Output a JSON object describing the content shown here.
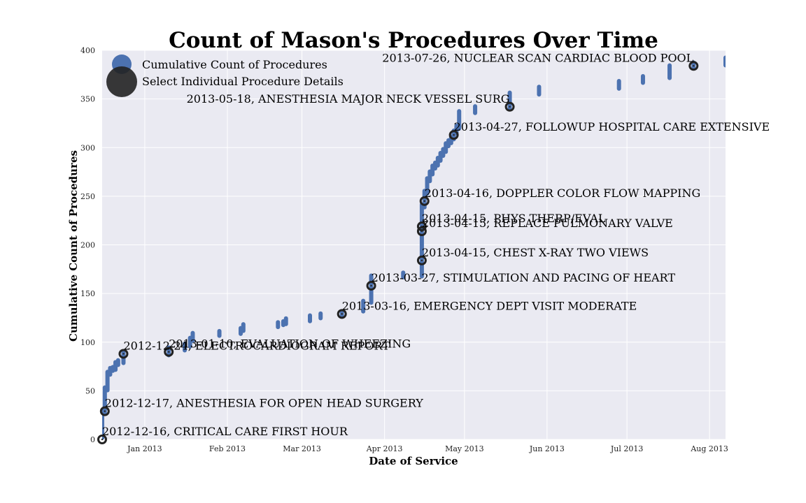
{
  "chart_data": {
    "type": "scatter",
    "title": "Count of Mason's Procedures Over Time",
    "xlabel": "Date of Service",
    "ylabel": "Cumulative Count of Procedures",
    "xlim": [
      "2012-12-16",
      "2013-08-07"
    ],
    "ylim": [
      0,
      400
    ],
    "grid": true,
    "legend_position": "top-left",
    "colors": {
      "background": "#EAEAF2",
      "grid": "#FFFFFF",
      "series": "#4C72B0",
      "selected": "#222222"
    },
    "x_ticks": [
      {
        "date": "2013-01-01",
        "label": "Jan 2013"
      },
      {
        "date": "2013-02-01",
        "label": "Feb 2013"
      },
      {
        "date": "2013-03-01",
        "label": "Mar 2013"
      },
      {
        "date": "2013-04-01",
        "label": "Apr 2013"
      },
      {
        "date": "2013-05-01",
        "label": "May 2013"
      },
      {
        "date": "2013-06-01",
        "label": "Jun 2013"
      },
      {
        "date": "2013-07-01",
        "label": "Jul 2013"
      },
      {
        "date": "2013-08-01",
        "label": "Aug 2013"
      }
    ],
    "y_ticks": [
      {
        "value": 0,
        "label": "0"
      },
      {
        "value": 50,
        "label": "50"
      },
      {
        "value": 100,
        "label": "100"
      },
      {
        "value": 150,
        "label": "150"
      },
      {
        "value": 200,
        "label": "200"
      },
      {
        "value": 250,
        "label": "250"
      },
      {
        "value": 300,
        "label": "300"
      },
      {
        "value": 350,
        "label": "350"
      },
      {
        "value": 400,
        "label": "400"
      }
    ],
    "legend": [
      {
        "label": "Cumulative Count of Procedures"
      },
      {
        "label": "Select Individual Procedure Details"
      }
    ],
    "series": [
      {
        "name": "Cumulative Count of Procedures",
        "segments": [
          {
            "date": "2012-12-16",
            "y_from": 0,
            "y_to": 28
          },
          {
            "date": "2012-12-17",
            "y_from": 28,
            "y_to": 52
          },
          {
            "date": "2012-12-18",
            "y_from": 52,
            "y_to": 68
          },
          {
            "date": "2012-12-19",
            "y_from": 68,
            "y_to": 72
          },
          {
            "date": "2012-12-20",
            "y_from": 72,
            "y_to": 73
          },
          {
            "date": "2012-12-21",
            "y_from": 73,
            "y_to": 78
          },
          {
            "date": "2012-12-22",
            "y_from": 78,
            "y_to": 80
          },
          {
            "date": "2012-12-24",
            "y_from": 80,
            "y_to": 88
          },
          {
            "date": "2013-01-10",
            "y_from": 88,
            "y_to": 93
          },
          {
            "date": "2013-01-16",
            "y_from": 93,
            "y_to": 97
          },
          {
            "date": "2013-01-18",
            "y_from": 97,
            "y_to": 103
          },
          {
            "date": "2013-01-19",
            "y_from": 103,
            "y_to": 108
          },
          {
            "date": "2013-01-29",
            "y_from": 108,
            "y_to": 110
          },
          {
            "date": "2013-02-06",
            "y_from": 110,
            "y_to": 113
          },
          {
            "date": "2013-02-07",
            "y_from": 113,
            "y_to": 117
          },
          {
            "date": "2013-02-20",
            "y_from": 117,
            "y_to": 119
          },
          {
            "date": "2013-02-22",
            "y_from": 119,
            "y_to": 120
          },
          {
            "date": "2013-02-23",
            "y_from": 120,
            "y_to": 123
          },
          {
            "date": "2013-03-04",
            "y_from": 123,
            "y_to": 126
          },
          {
            "date": "2013-03-08",
            "y_from": 126,
            "y_to": 128
          },
          {
            "date": "2013-03-16",
            "y_from": 128,
            "y_to": 130
          },
          {
            "date": "2013-03-24",
            "y_from": 133,
            "y_to": 141
          },
          {
            "date": "2013-03-27",
            "y_from": 142,
            "y_to": 167
          },
          {
            "date": "2013-04-08",
            "y_from": 168,
            "y_to": 170
          },
          {
            "date": "2013-04-15",
            "y_from": 169,
            "y_to": 240
          },
          {
            "date": "2013-04-16",
            "y_from": 240,
            "y_to": 254
          },
          {
            "date": "2013-04-17",
            "y_from": 254,
            "y_to": 267
          },
          {
            "date": "2013-04-18",
            "y_from": 267,
            "y_to": 274
          },
          {
            "date": "2013-04-19",
            "y_from": 274,
            "y_to": 280
          },
          {
            "date": "2013-04-20",
            "y_from": 280,
            "y_to": 283
          },
          {
            "date": "2013-04-21",
            "y_from": 283,
            "y_to": 288
          },
          {
            "date": "2013-04-22",
            "y_from": 288,
            "y_to": 293
          },
          {
            "date": "2013-04-23",
            "y_from": 293,
            "y_to": 297
          },
          {
            "date": "2013-04-24",
            "y_from": 297,
            "y_to": 303
          },
          {
            "date": "2013-04-25",
            "y_from": 303,
            "y_to": 306
          },
          {
            "date": "2013-04-26",
            "y_from": 306,
            "y_to": 310
          },
          {
            "date": "2013-04-27",
            "y_from": 310,
            "y_to": 316
          },
          {
            "date": "2013-04-28",
            "y_from": 316,
            "y_to": 321
          },
          {
            "date": "2013-04-29",
            "y_from": 321,
            "y_to": 336
          },
          {
            "date": "2013-05-05",
            "y_from": 337,
            "y_to": 341
          },
          {
            "date": "2013-05-18",
            "y_from": 342,
            "y_to": 355
          },
          {
            "date": "2013-05-29",
            "y_from": 356,
            "y_to": 361
          },
          {
            "date": "2013-06-28",
            "y_from": 362,
            "y_to": 367
          },
          {
            "date": "2013-07-07",
            "y_from": 368,
            "y_to": 372
          },
          {
            "date": "2013-07-17",
            "y_from": 373,
            "y_to": 383
          },
          {
            "date": "2013-07-26",
            "y_from": 383,
            "y_to": 386
          },
          {
            "date": "2013-08-07",
            "y_from": 386,
            "y_to": 391
          }
        ]
      }
    ],
    "selected_points": [
      {
        "date": "2012-12-16",
        "y": 0,
        "label": "2012-12-16, CRITICAL CARE FIRST HOUR"
      },
      {
        "date": "2012-12-17",
        "y": 29,
        "label": "2012-12-17, ANESTHESIA FOR OPEN HEAD SURGERY"
      },
      {
        "date": "2012-12-24",
        "y": 88,
        "label": "2012-12-24, ELECTROCARDIOGRAM REPORT"
      },
      {
        "date": "2013-01-10",
        "y": 90,
        "label": "2013-01-10, EVALUATION OF WHEEZING"
      },
      {
        "date": "2013-03-16",
        "y": 129,
        "label": "2013-03-16, EMERGENCY DEPT VISIT MODERATE"
      },
      {
        "date": "2013-03-27",
        "y": 158,
        "label": "2013-03-27, STIMULATION AND PACING OF HEART"
      },
      {
        "date": "2013-04-15",
        "y": 184,
        "label": "2013-04-15, CHEST X-RAY TWO VIEWS"
      },
      {
        "date": "2013-04-15",
        "y": 214,
        "label": "2013-04-15, REPLACE PULMONARY VALVE"
      },
      {
        "date": "2013-04-15",
        "y": 219,
        "label": "2013-04-15, PHYS THERP/EVAL"
      },
      {
        "date": "2013-04-16",
        "y": 245,
        "label": "2013-04-16, DOPPLER COLOR FLOW MAPPING"
      },
      {
        "date": "2013-04-27",
        "y": 313,
        "label": "2013-04-27, FOLLOWUP HOSPITAL CARE EXTENSIVE"
      },
      {
        "date": "2013-05-18",
        "y": 342,
        "label": "2013-05-18, ANESTHESIA MAJOR NECK VESSEL SURG"
      },
      {
        "date": "2013-07-26",
        "y": 384,
        "label": "2013-07-26, NUCLEAR SCAN CARDIAC BLOOD POOL"
      }
    ]
  }
}
